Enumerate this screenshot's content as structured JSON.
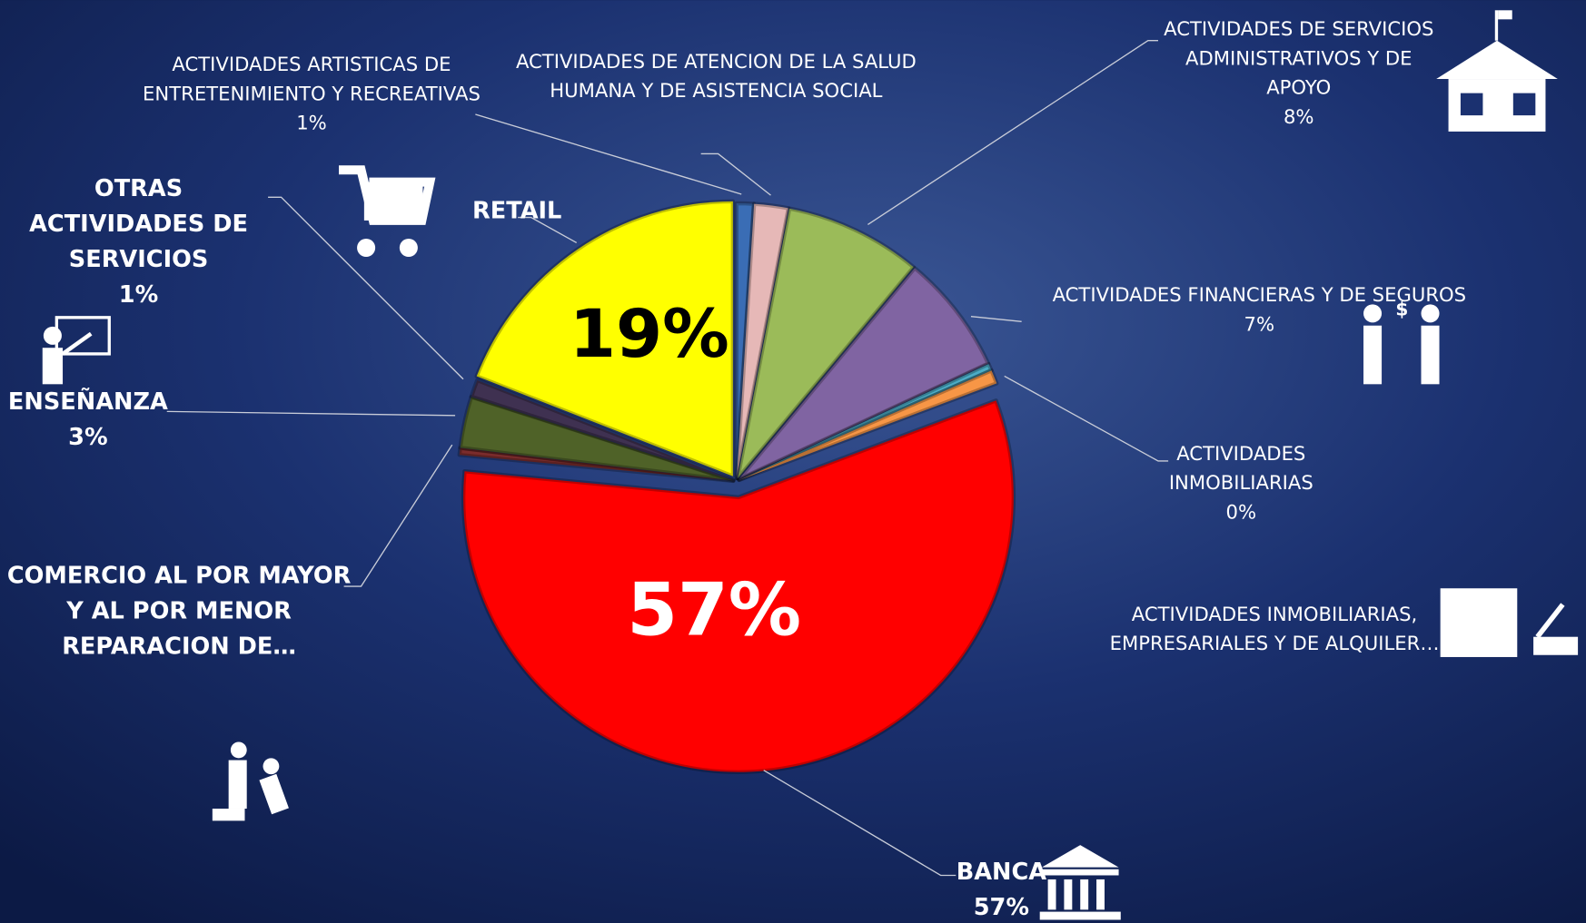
{
  "chart_data": {
    "type": "pie",
    "categories": [
      "ACTIVIDADES ARTISTICAS DE ENTRETENIMIENTO Y RECREATIVAS",
      "ACTIVIDADES DE ATENCION DE LA SALUD HUMANA Y DE ASISTENCIA SOCIAL",
      "ACTIVIDADES DE SERVICIOS ADMINISTRATIVOS Y DE APOYO",
      "ACTIVIDADES FINANCIERAS Y DE SEGUROS",
      "ACTIVIDADES INMOBILIARIAS",
      "ACTIVIDADES INMOBILIARIAS, EMPRESARIALES Y DE ALQUILER…",
      "BANCA",
      "COMERCIO AL POR MAYOR Y AL POR MENOR REPARACION DE…",
      "ENSEÑANZA",
      "OTRAS ACTIVIDADES DE SERVICIOS",
      "RETAIL"
    ],
    "values": [
      1,
      2,
      8,
      7,
      0.4,
      0.8,
      57,
      0.4,
      3,
      1,
      19
    ],
    "value_labels": [
      "1%",
      null,
      "8%",
      "7%",
      "0%",
      null,
      "57%",
      null,
      "3%",
      "1%",
      "19%"
    ],
    "colors": [
      "#3a6db5",
      "#e6b8b7",
      "#9bbb59",
      "#8064a2",
      "#4bacc6",
      "#f79646",
      "#ff0000",
      "#7b2c2c",
      "#4f6228",
      "#3f3151",
      "#ffff00"
    ]
  }
}
